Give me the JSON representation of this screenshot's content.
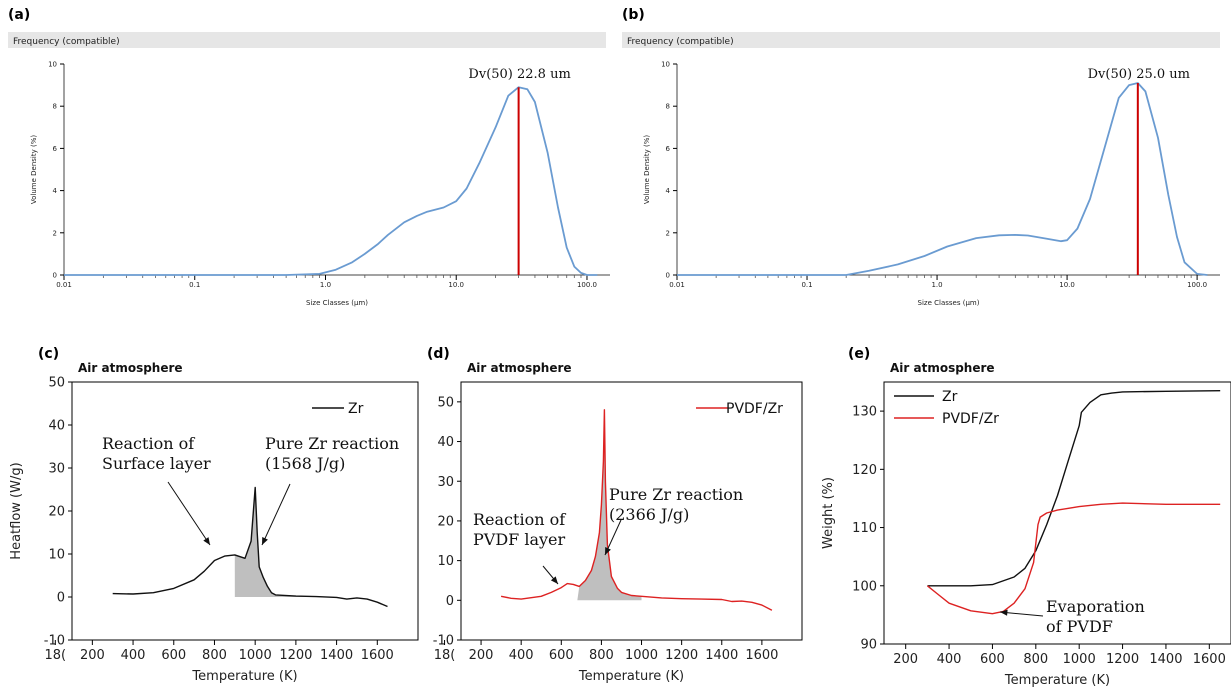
{
  "chart_data": [
    {
      "panel": "(a)",
      "type": "line",
      "header": "Frequency (compatible)",
      "xlabel": "Size Classes (μm)",
      "ylabel": "Volume Density (%)",
      "xscale": "log",
      "xlim": [
        0.01,
        150
      ],
      "ylim": [
        0,
        10
      ],
      "xticks": [
        "0.01",
        "0.1",
        "1.0",
        "10.0",
        "100.0"
      ],
      "yticks": [
        "0",
        "2",
        "4",
        "6",
        "8",
        "10"
      ],
      "series": [
        {
          "color": "#6a9bd1",
          "x": [
            0.01,
            0.5,
            0.9,
            1.2,
            1.6,
            2.0,
            2.5,
            3.0,
            4.0,
            5.0,
            6.0,
            8.0,
            10.0,
            12.0,
            15.0,
            20.0,
            25.0,
            30.0,
            35.0,
            40.0,
            50.0,
            60.0,
            70.0,
            80.0,
            90.0,
            100.0,
            120.0
          ],
          "y": [
            0,
            0,
            0.05,
            0.25,
            0.6,
            1.0,
            1.45,
            1.9,
            2.5,
            2.8,
            3.0,
            3.2,
            3.5,
            4.1,
            5.3,
            7.0,
            8.5,
            8.9,
            8.8,
            8.2,
            5.8,
            3.2,
            1.3,
            0.4,
            0.1,
            0,
            0
          ]
        }
      ],
      "marker": {
        "x": 30.0,
        "y": 8.9,
        "color": "#cc0000",
        "label": "Dv(50) 22.8 um"
      }
    },
    {
      "panel": "(b)",
      "type": "line",
      "header": "Frequency (compatible)",
      "xlabel": "Size Classes (μm)",
      "ylabel": "Volume Density (%)",
      "xscale": "log",
      "xlim": [
        0.01,
        150
      ],
      "ylim": [
        0,
        10
      ],
      "xticks": [
        "0.01",
        "0.1",
        "1.0",
        "10.0",
        "100.0"
      ],
      "yticks": [
        "0",
        "2",
        "4",
        "6",
        "8",
        "10"
      ],
      "series": [
        {
          "color": "#6a9bd1",
          "x": [
            0.01,
            0.2,
            0.3,
            0.5,
            0.8,
            1.2,
            2.0,
            3.0,
            4.0,
            5.0,
            7.0,
            9.0,
            10.0,
            12.0,
            15.0,
            20.0,
            25.0,
            30.0,
            35.0,
            40.0,
            50.0,
            60.0,
            70.0,
            80.0,
            100.0,
            120.0
          ],
          "y": [
            0,
            0,
            0.2,
            0.5,
            0.9,
            1.35,
            1.75,
            1.88,
            1.9,
            1.87,
            1.72,
            1.6,
            1.65,
            2.2,
            3.6,
            6.3,
            8.4,
            9.0,
            9.1,
            8.7,
            6.5,
            3.8,
            1.8,
            0.6,
            0.05,
            0
          ]
        }
      ],
      "marker": {
        "x": 35.0,
        "y": 9.1,
        "color": "#cc0000",
        "label": "Dv(50) 25.0 um"
      }
    },
    {
      "panel": "(c)",
      "type": "line",
      "subtitle": "Air atmosphere",
      "xlabel": "Temperature (K)",
      "ylabel": "Heatflow (W/g)",
      "xlim": [
        100,
        1800
      ],
      "ylim": [
        -10,
        50
      ],
      "xticks": [
        "200",
        "400",
        "600",
        "800",
        "1000",
        "1200",
        "1400",
        "1600",
        "18("
      ],
      "yticks": [
        "-10",
        "0",
        "10",
        "20",
        "30",
        "40",
        "50"
      ],
      "legend": "top-right",
      "series": [
        {
          "name": "Zr",
          "color": "#111111",
          "x": [
            300,
            400,
            500,
            600,
            700,
            750,
            800,
            850,
            900,
            950,
            980,
            1000,
            1010,
            1020,
            1040,
            1060,
            1080,
            1100,
            1200,
            1300,
            1400,
            1450,
            1500,
            1550,
            1600,
            1650
          ],
          "y": [
            0.8,
            0.7,
            1.0,
            2.0,
            4.0,
            6.0,
            8.5,
            9.5,
            9.8,
            9.0,
            13.0,
            25.5,
            15.0,
            7.0,
            4.5,
            2.5,
            1.0,
            0.5,
            0.2,
            0.1,
            -0.1,
            -0.5,
            -0.2,
            -0.5,
            -1.2,
            -2.2
          ]
        }
      ],
      "shade": {
        "from": 900,
        "to": 1300
      },
      "annotations": [
        "Reaction of",
        "Surface layer",
        "Pure Zr reaction",
        "(1568 J/g)"
      ]
    },
    {
      "panel": "(d)",
      "type": "line",
      "subtitle": "Air atmosphere",
      "xlabel": "Temperature (K)",
      "ylabel": "",
      "xlim": [
        100,
        1800
      ],
      "ylim": [
        -10,
        55
      ],
      "xticks": [
        "200",
        "400",
        "600",
        "800",
        "1000",
        "1200",
        "1400",
        "1600",
        "18("
      ],
      "yticks": [
        "-10",
        "0",
        "10",
        "20",
        "30",
        "40",
        "50"
      ],
      "legend": "top-right",
      "series": [
        {
          "name": "PVDF/Zr",
          "color": "#dd2222",
          "x": [
            300,
            350,
            400,
            500,
            550,
            600,
            630,
            660,
            690,
            720,
            750,
            770,
            790,
            800,
            810,
            815,
            820,
            830,
            850,
            880,
            900,
            950,
            1000,
            1100,
            1200,
            1300,
            1400,
            1450,
            1500,
            1550,
            1600,
            1650
          ],
          "y": [
            1.0,
            0.5,
            0.3,
            1.0,
            2.0,
            3.2,
            4.2,
            4.0,
            3.5,
            5.0,
            7.5,
            11.0,
            17.0,
            24.0,
            35.0,
            48.0,
            30.0,
            14.0,
            6.0,
            3.0,
            2.0,
            1.2,
            1.0,
            0.6,
            0.4,
            0.3,
            0.2,
            -0.3,
            -0.2,
            -0.5,
            -1.2,
            -2.5
          ]
        }
      ],
      "shade": {
        "from": 680,
        "to": 1000
      },
      "annotations": [
        "Reaction of",
        "PVDF layer",
        "Pure Zr reaction",
        "(2366 J/g)"
      ]
    },
    {
      "panel": "(e)",
      "type": "line",
      "subtitle": "Air atmosphere",
      "xlabel": "Temperature (K)",
      "ylabel": "Weight (%)",
      "xlim": [
        100,
        1700
      ],
      "ylim": [
        90,
        135
      ],
      "xticks": [
        "200",
        "400",
        "600",
        "800",
        "1000",
        "1200",
        "1400",
        "1600"
      ],
      "yticks": [
        "90",
        "100",
        "110",
        "120",
        "130"
      ],
      "legend": "top-left",
      "series": [
        {
          "name": "Zr",
          "color": "#111111",
          "x": [
            300,
            500,
            600,
            700,
            750,
            800,
            850,
            900,
            950,
            1000,
            1010,
            1050,
            1100,
            1150,
            1200,
            1400,
            1650
          ],
          "y": [
            100,
            100,
            100.2,
            101.5,
            103,
            106,
            110.5,
            115.5,
            121.5,
            127.5,
            129.8,
            131.5,
            132.8,
            133.1,
            133.3,
            133.4,
            133.5
          ]
        },
        {
          "name": "PVDF/Zr",
          "color": "#dd2222",
          "x": [
            300,
            350,
            400,
            500,
            600,
            650,
            700,
            750,
            790,
            810,
            820,
            850,
            900,
            1000,
            1100,
            1200,
            1400,
            1650
          ],
          "y": [
            100,
            98.5,
            97.0,
            95.7,
            95.2,
            95.6,
            97.0,
            99.5,
            104,
            110.5,
            111.8,
            112.5,
            113.0,
            113.6,
            114.0,
            114.2,
            114.0,
            114.0
          ]
        }
      ],
      "annotations": [
        "Evaporation",
        "of PVDF"
      ]
    }
  ],
  "panel_labels": [
    "(a)",
    "(b)",
    "(c)",
    "(d)",
    "(e)"
  ]
}
